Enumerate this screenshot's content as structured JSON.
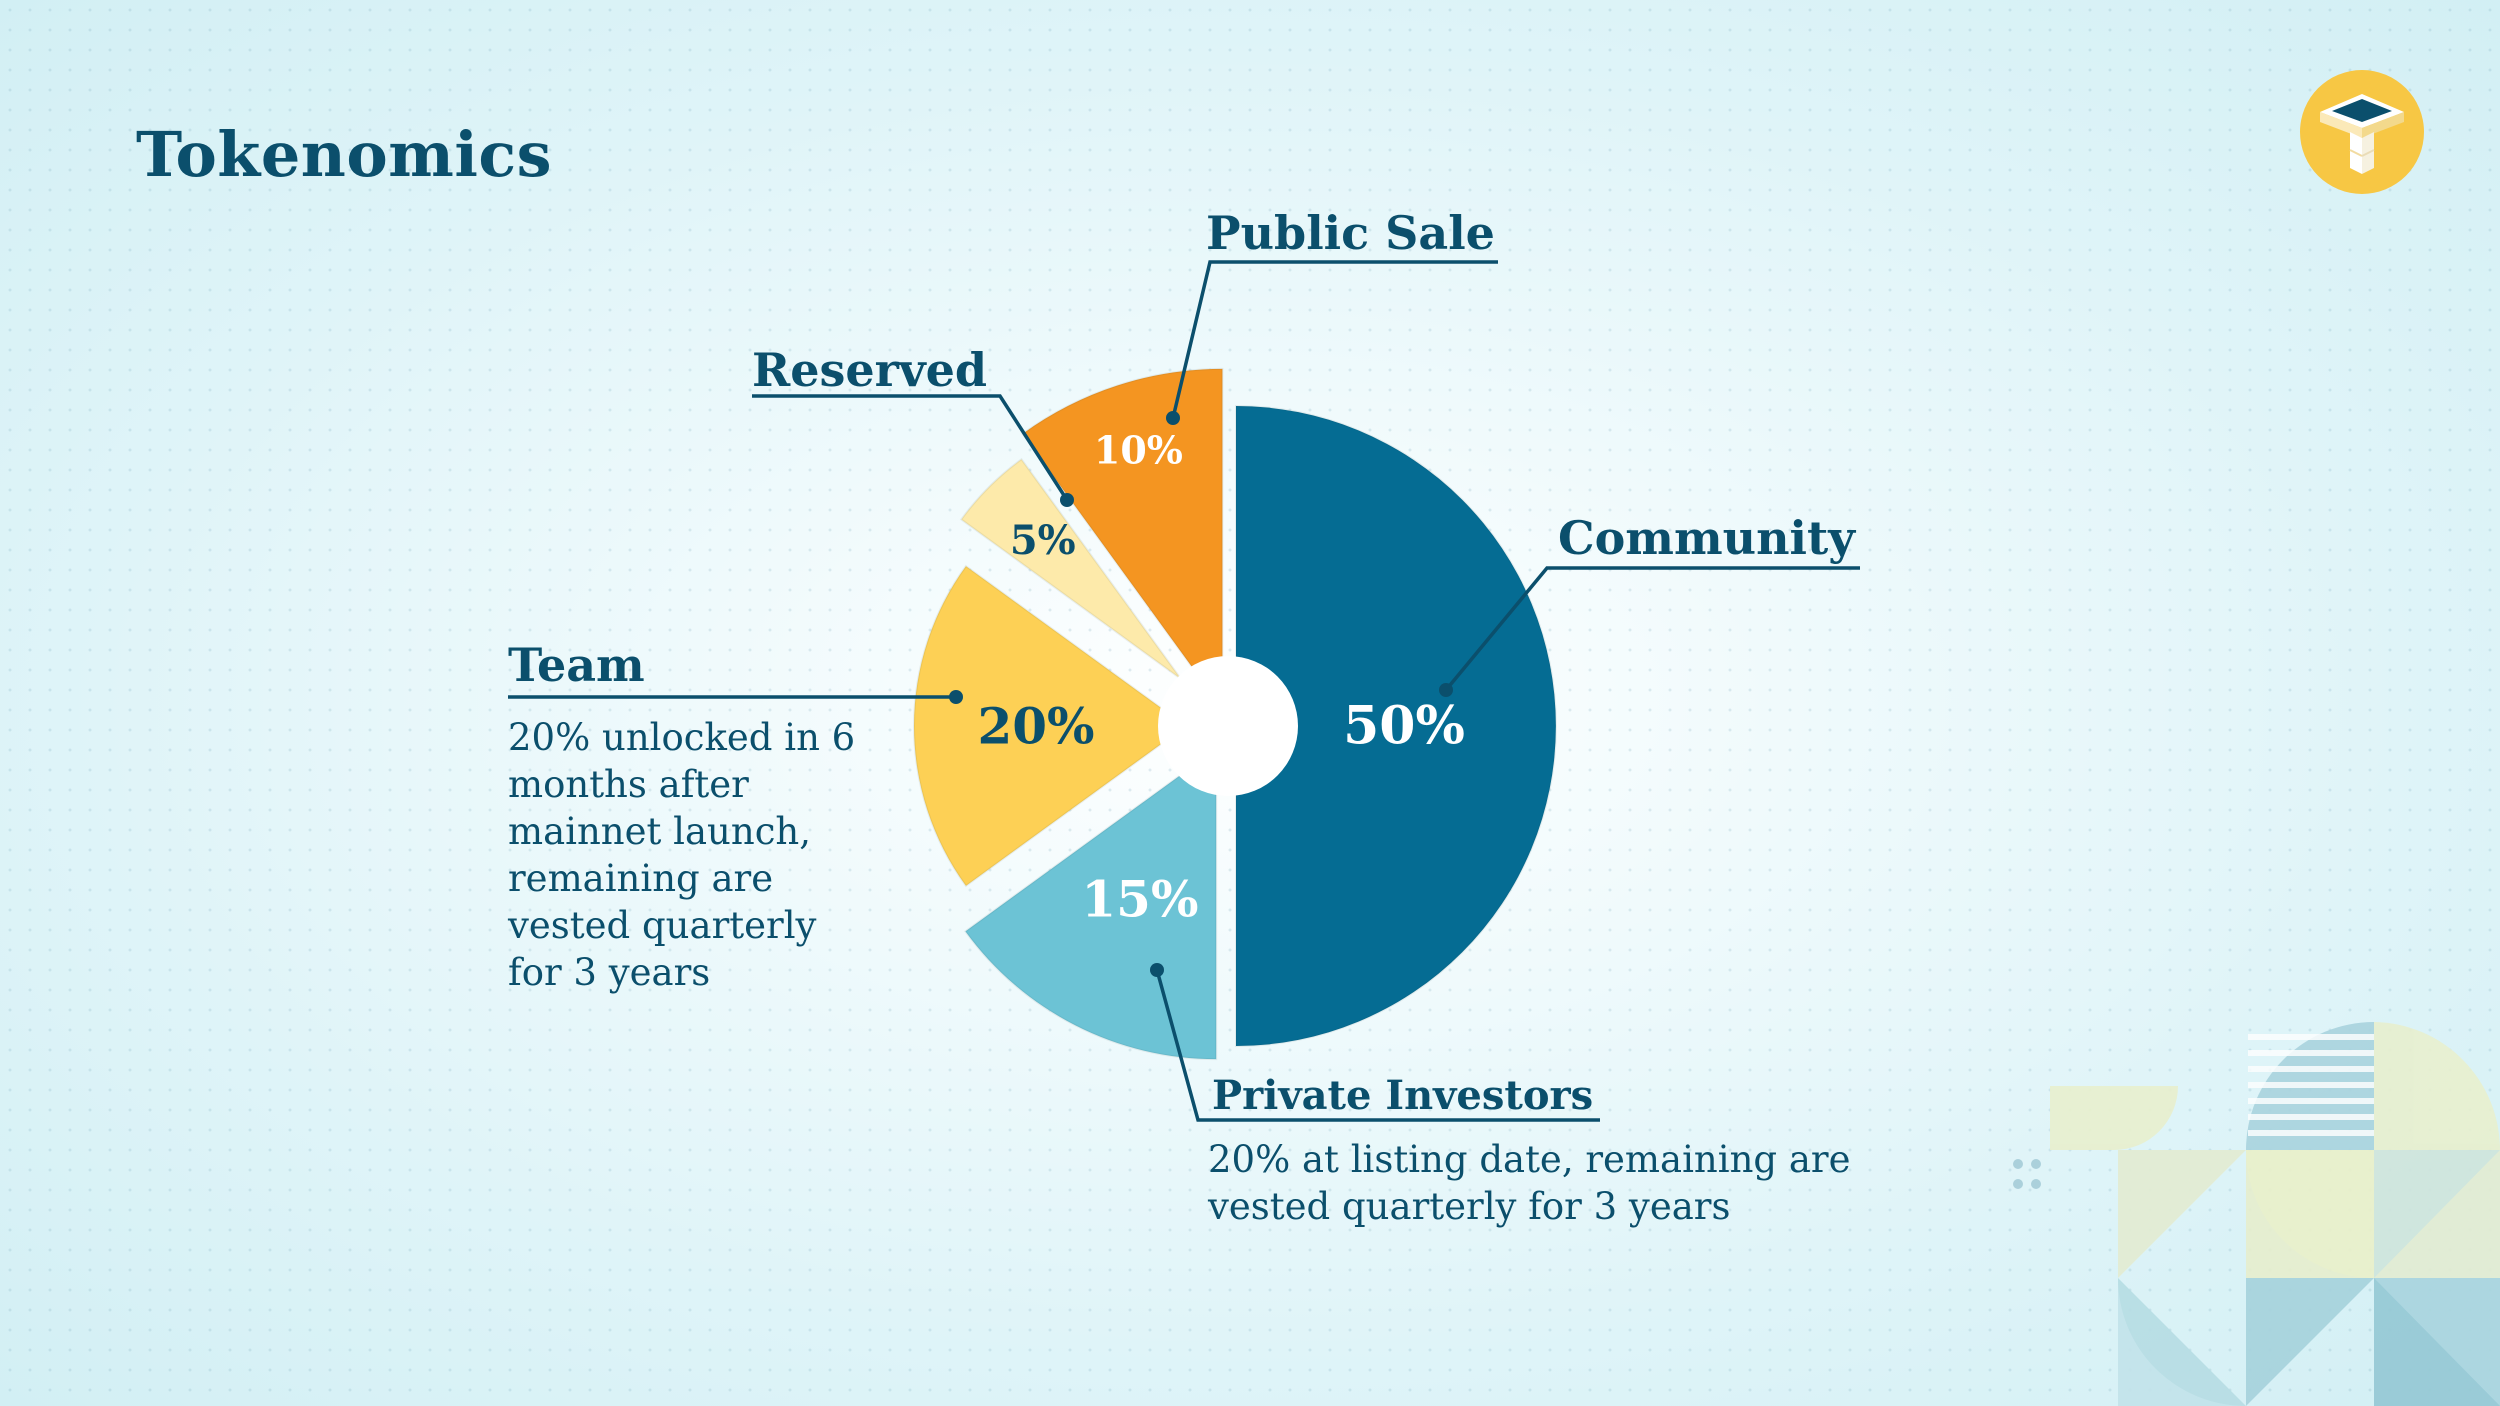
{
  "title": "Tokenomics",
  "logo": {
    "icon": "t-block-logo-icon",
    "accent": "#f7c744"
  },
  "colors": {
    "community": "#056c93",
    "private_investors": "#6cc3d5",
    "team": "#fdd055",
    "reserved": "#fdeaaa",
    "public_sale": "#f49521",
    "text": "#0b4f6c"
  },
  "chart_data": {
    "type": "pie",
    "title": "Tokenomics",
    "slices": [
      {
        "name": "Community",
        "value": 50,
        "label": "50%",
        "color": "#056c93"
      },
      {
        "name": "Private Investors",
        "value": 15,
        "label": "15%",
        "color": "#6cc3d5"
      },
      {
        "name": "Team",
        "value": 20,
        "label": "20%",
        "color": "#fdd055"
      },
      {
        "name": "Reserved",
        "value": 5,
        "label": "5%",
        "color": "#fdeaaa"
      },
      {
        "name": "Public Sale",
        "value": 10,
        "label": "10%",
        "color": "#f49521"
      }
    ],
    "notes": {
      "team": "20% unlocked in 6 months after mainnet launch, remaining are vested quarterly for 3 years",
      "private_investors": "20% at listing date, remaining are vested quarterly for 3 years"
    }
  },
  "labels": {
    "community": "Community",
    "private_investors": "Private Investors",
    "team": "Team",
    "reserved": "Reserved",
    "public_sale": "Public Sale"
  },
  "notes": {
    "team": [
      "20% unlocked in 6",
      "months after",
      "mainnet launch,",
      "remaining are",
      "vested quarterly",
      "for 3 years"
    ],
    "private_investors": [
      "20% at listing date, remaining are",
      "vested quarterly for 3 years"
    ]
  }
}
